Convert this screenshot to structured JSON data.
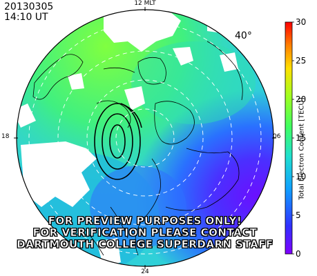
{
  "header": {
    "date": "20130305",
    "time": "14:10 UT"
  },
  "plot": {
    "lat_label": "40°",
    "mlt_labels": {
      "top": "12 MLT",
      "bottom": "24",
      "left": "18",
      "right": "06"
    }
  },
  "colorbar": {
    "label": "Total Electron Content [TECU]",
    "ticks": [
      "30",
      "25",
      "20",
      "15",
      "10",
      "5",
      "0"
    ],
    "range": [
      0,
      30
    ],
    "colors": [
      "#7a00ff",
      "#3a3aff",
      "#1aa0ff",
      "#20e0c0",
      "#60ff40",
      "#c0ff20",
      "#ffe000",
      "#ff8000",
      "#ff1000"
    ]
  },
  "watermark": {
    "line1": "FOR PREVIEW PURPOSES ONLY!",
    "line2": "FOR VERIFICATION PLEASE CONTACT",
    "line3": "DARTMOUTH COLLEGE SUPERDARN STAFF"
  }
}
